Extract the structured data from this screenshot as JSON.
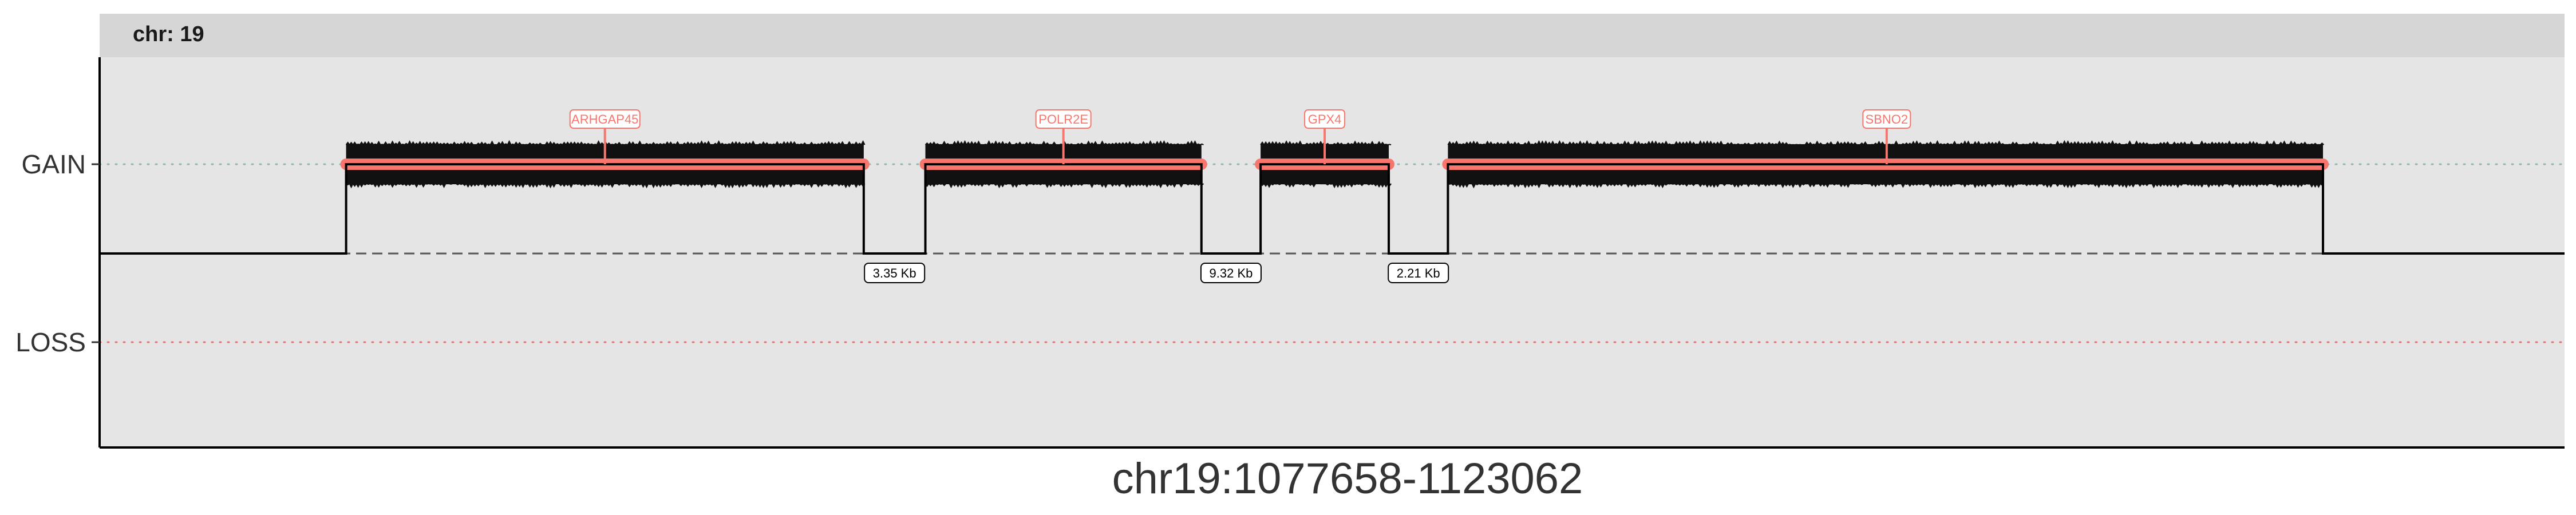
{
  "chart_data": {
    "type": "segment-track",
    "facet_label": "chr: 19",
    "xlabel": "chr19:1077658-1123062",
    "y_categories": [
      "GAIN",
      "LOSS"
    ],
    "xlim": [
      0,
      100
    ],
    "segments": [
      {
        "start": 10,
        "end": 31,
        "state": "GAIN"
      },
      {
        "start": 33.5,
        "end": 44.7,
        "state": "GAIN"
      },
      {
        "start": 47.1,
        "end": 52.3,
        "state": "GAIN"
      },
      {
        "start": 54.7,
        "end": 90.2,
        "state": "GAIN"
      }
    ],
    "genes": [
      {
        "name": "ARHGAP45",
        "pos": 20.5
      },
      {
        "name": "POLR2E",
        "pos": 39.1
      },
      {
        "name": "GPX4",
        "pos": 49.7
      },
      {
        "name": "SBNO2",
        "pos": 72.5
      }
    ],
    "gaps": [
      {
        "label": "3.35 Kb",
        "start": 31,
        "end": 33.5
      },
      {
        "label": "9.32 Kb",
        "start": 44.7,
        "end": 47.1
      },
      {
        "label": "2.21 Kb",
        "start": 52.3,
        "end": 54.7
      }
    ],
    "colors": {
      "gain_line": "#8fb7ab",
      "loss_line": "#e57373",
      "segment": "#f8766d",
      "panel_bg": "#e5e5e5",
      "strip_bg": "#d6d6d6"
    }
  }
}
